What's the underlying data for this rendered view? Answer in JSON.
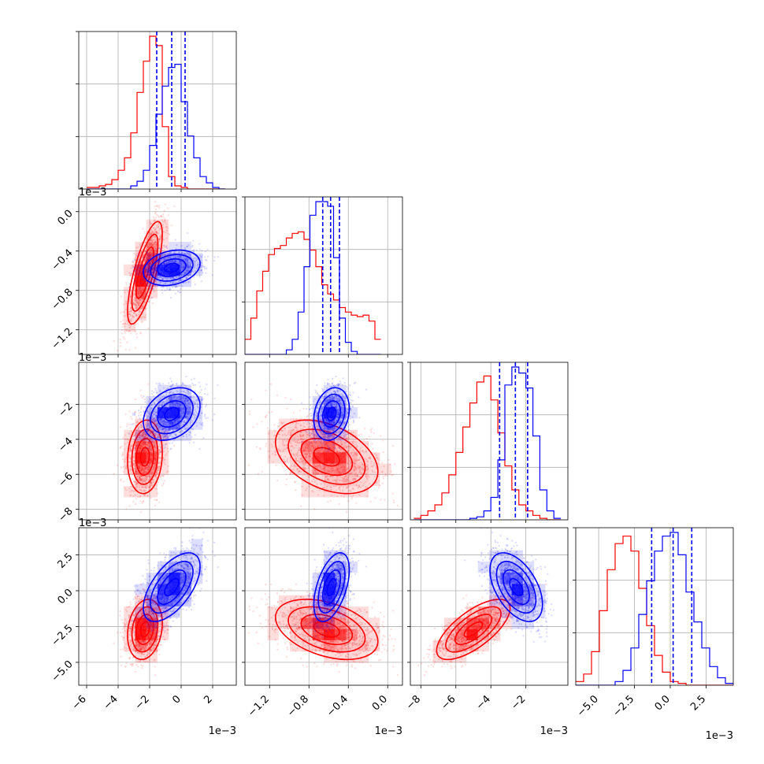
{
  "chart_data": {
    "type": "scatter",
    "subtype": "corner-plot",
    "grid": true,
    "series": [
      {
        "name": "",
        "color": "#ff0000"
      },
      {
        "name": "",
        "color": "#0000ff"
      }
    ],
    "params": [
      {
        "index": 0,
        "range": [
          -6.5,
          3.5
        ],
        "ticks": [
          -6,
          -4,
          -2,
          0,
          2
        ],
        "tick_labels": [
          "−6",
          "−4",
          "−2",
          "0",
          "2"
        ],
        "exponent_label": "1e−3"
      },
      {
        "index": 1,
        "range": [
          -1.45,
          0.15
        ],
        "ticks": [
          -1.2,
          -0.8,
          -0.4,
          0.0
        ],
        "tick_labels": [
          "−1.2",
          "−0.8",
          "−0.4",
          "0.0"
        ],
        "exponent_label": "1e−3"
      },
      {
        "index": 2,
        "range": [
          -8.6,
          0.4
        ],
        "ticks": [
          -8,
          -6,
          -4,
          -2
        ],
        "tick_labels": [
          "−8",
          "−6",
          "−4",
          "−2"
        ],
        "exponent_label": "1e−3"
      },
      {
        "index": 3,
        "range": [
          -6.6,
          4.4
        ],
        "ticks": [
          -5.0,
          -2.5,
          0.0,
          2.5
        ],
        "tick_labels": [
          "−5.0",
          "−2.5",
          "0.0",
          "2.5"
        ],
        "exponent_label": "1e−3"
      }
    ],
    "distributions": {
      "red": {
        "mean": [
          -2.3,
          -0.62,
          -5.0,
          -2.7
        ],
        "std": [
          0.55,
          0.26,
          1.05,
          1.05
        ],
        "corr": [
          [
            1,
            0.75,
            0.1,
            0.2
          ],
          [
            0.75,
            1,
            -0.4,
            -0.4
          ],
          [
            0.1,
            -0.4,
            1,
            0.7
          ],
          [
            0.2,
            -0.4,
            0.7,
            1
          ]
        ]
      },
      "blue": {
        "mean": [
          -0.6,
          -0.57,
          -2.55,
          0.25
        ],
        "std": [
          0.9,
          0.09,
          0.75,
          1.2
        ],
        "corr": [
          [
            1,
            0.25,
            0.3,
            0.6
          ],
          [
            0.25,
            1,
            0.2,
            0.5
          ],
          [
            0.3,
            0.2,
            1,
            -0.5
          ],
          [
            0.6,
            0.5,
            -0.5,
            1
          ]
        ]
      }
    },
    "histograms": [
      {
        "param": 0,
        "bins": {
          "start": -6.0,
          "width": 0.4
        },
        "red": [
          1,
          1,
          2,
          3,
          6,
          12,
          20,
          36,
          62,
          82,
          98,
          92,
          40,
          8,
          2,
          1,
          0,
          0,
          0,
          0,
          0,
          0
        ],
        "blue": [
          0,
          0,
          0,
          0,
          0,
          0,
          0,
          2,
          5,
          12,
          28,
          48,
          66,
          78,
          80,
          56,
          34,
          20,
          8,
          4,
          1,
          0
        ],
        "quantile_lines": [
          -1.55,
          -0.6,
          0.25
        ]
      },
      {
        "param": 1,
        "bins": {
          "start": -1.45,
          "width": 0.06
        },
        "red": [
          10,
          24,
          42,
          55,
          66,
          70,
          72,
          77,
          80,
          81,
          76,
          69,
          58,
          46,
          40,
          36,
          31,
          28,
          26,
          25,
          26,
          22,
          10
        ],
        "blue": [
          0,
          0,
          0,
          0,
          0,
          0,
          0,
          3,
          10,
          28,
          58,
          92,
          101,
          101,
          98,
          64,
          24,
          8,
          2,
          0,
          0,
          0,
          0
        ],
        "quantile_lines": [
          -0.66,
          -0.58,
          -0.49
        ]
      },
      {
        "param": 2,
        "bins": {
          "start": -8.4,
          "width": 0.4
        },
        "red": [
          1,
          3,
          6,
          10,
          18,
          30,
          45,
          62,
          78,
          92,
          96,
          80,
          58,
          36,
          20,
          10,
          6,
          3,
          1,
          0,
          0
        ],
        "blue": [
          0,
          0,
          0,
          0,
          0,
          0,
          0,
          0,
          1,
          2,
          6,
          15,
          40,
          90,
          102,
          98,
          88,
          56,
          20,
          6,
          1
        ],
        "quantile_lines": [
          -3.5,
          -2.6,
          -1.9
        ]
      },
      {
        "param": 3,
        "bins": {
          "start": -6.6,
          "width": 0.55
        },
        "red": [
          2,
          6,
          18,
          40,
          62,
          76,
          80,
          72,
          52,
          32,
          16,
          7,
          2,
          1,
          0,
          0,
          0,
          0,
          0,
          0
        ],
        "blue": [
          0,
          0,
          0,
          0,
          0,
          2,
          8,
          20,
          38,
          56,
          72,
          80,
          82,
          70,
          50,
          34,
          20,
          10,
          4,
          1
        ],
        "quantile_lines": [
          -1.3,
          0.2,
          1.5
        ]
      }
    ]
  }
}
